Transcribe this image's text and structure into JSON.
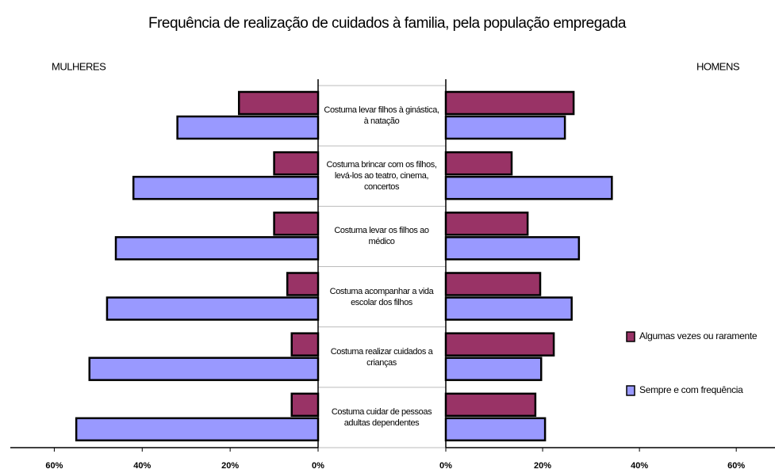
{
  "chart_data": {
    "type": "butterfly",
    "title": "Frequência de realização de cuidados à familia, pela população empregada",
    "categories": [
      "Costuma levar filhos à ginástica, à natação",
      "Costuma brincar com os filhos, levá-los ao teatro, cinema, concertos",
      "Costuma levar os filhos ao médico",
      "Costuma acompanhar a vida escolar dos filhos",
      "Costuma realizar cuidados a crianças",
      "Costuma cuidar de pessoas adultas dependentes"
    ],
    "series": [
      {
        "name": "Algumas vezes ou raramente",
        "color": "#993366"
      },
      {
        "name": "Sempre e com frequência",
        "color": "#9999ff"
      }
    ],
    "panels": [
      {
        "label": "MULHERES",
        "xlim": [
          0,
          70
        ],
        "xticks": [
          {
            "value": 0,
            "label": "0%"
          },
          {
            "value": 20,
            "label": "20%"
          },
          {
            "value": 40,
            "label": "40%"
          },
          {
            "value": 60,
            "label": "60%"
          }
        ],
        "series": [
          {
            "values": [
              18,
              10,
              10,
              7,
              6,
              6
            ]
          },
          {
            "values": [
              32,
              42,
              46,
              48,
              52,
              55
            ]
          }
        ]
      },
      {
        "label": "HOMENS",
        "xlim": [
          0,
          68
        ],
        "xticks": [
          {
            "value": 0,
            "label": "0%"
          },
          {
            "value": 20,
            "label": "20%"
          },
          {
            "value": 40,
            "label": "40%"
          },
          {
            "value": 60,
            "label": "60%"
          }
        ],
        "series": [
          {
            "values": [
              26.4,
              13.6,
              16.9,
              19.5,
              22.3,
              18.5
            ]
          },
          {
            "values": [
              24.6,
              34.3,
              27.5,
              26,
              19.7,
              20.5
            ]
          }
        ]
      }
    ]
  }
}
